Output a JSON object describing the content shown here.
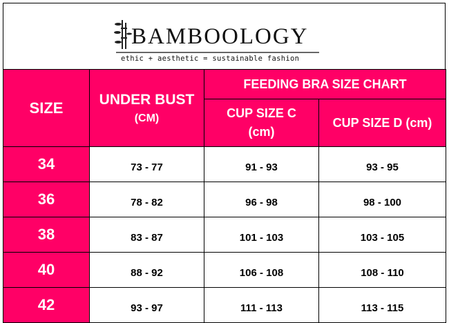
{
  "logo": {
    "brand": "BAMBOOLOGY",
    "tagline": "ethic + aesthetic = sustainable fashion"
  },
  "colors": {
    "header_bg": "#FF0066",
    "header_text": "#FFFFFF"
  },
  "header": {
    "size": "SIZE",
    "under_bust": "UNDER BUST",
    "under_bust_unit": "(CM)",
    "chart_title": "FEEDING BRA SIZE CHART",
    "cup_c": "CUP SIZE C",
    "cup_c_unit": "(cm)",
    "cup_d": "CUP SIZE D (cm)"
  },
  "rows": [
    {
      "size": "34",
      "under_bust": "73 - 77",
      "cup_c": "91 - 93",
      "cup_d": "93 - 95"
    },
    {
      "size": "36",
      "under_bust": "78 - 82",
      "cup_c": "96 - 98",
      "cup_d": "98 - 100"
    },
    {
      "size": "38",
      "under_bust": "83 - 87",
      "cup_c": "101 - 103",
      "cup_d": "103 - 105"
    },
    {
      "size": "40",
      "under_bust": "88 - 92",
      "cup_c": "106 - 108",
      "cup_d": "108 - 110"
    },
    {
      "size": "42",
      "under_bust": "93 - 97",
      "cup_c": "111 - 113",
      "cup_d": "113 - 115"
    }
  ]
}
